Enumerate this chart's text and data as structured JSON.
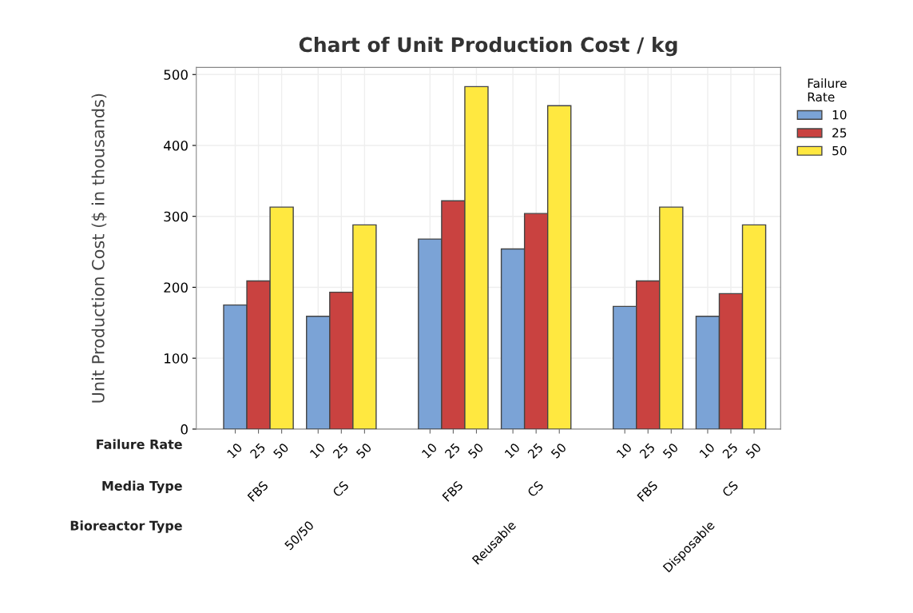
{
  "chart_data": {
    "type": "bar",
    "title": "Chart of Unit Production Cost / kg",
    "ylabel": "Unit Production Cost ($ in thousands)",
    "legend_title": "Failure\nRate",
    "categories": [
      "FBS",
      "CS",
      "FBS",
      "CS",
      "FBS",
      "CS"
    ],
    "series": [
      {
        "name": "10",
        "color": "#7ba3d6",
        "values": [
          175,
          159,
          268,
          254,
          173,
          159
        ]
      },
      {
        "name": "25",
        "color": "#c94240",
        "values": [
          209,
          193,
          322,
          304,
          209,
          191
        ]
      },
      {
        "name": "50",
        "color": "#ffe840",
        "values": [
          313,
          288,
          483,
          456,
          313,
          288
        ]
      }
    ],
    "annotations": [
      "Failure Rate",
      "Media Type",
      "Bioreactor Type",
      "50/50",
      "Reusable",
      "Disposable"
    ],
    "ylim": [
      0,
      510
    ],
    "yticks": [
      0,
      100,
      200,
      300,
      400,
      500
    ],
    "grid": true,
    "legend": "right"
  }
}
